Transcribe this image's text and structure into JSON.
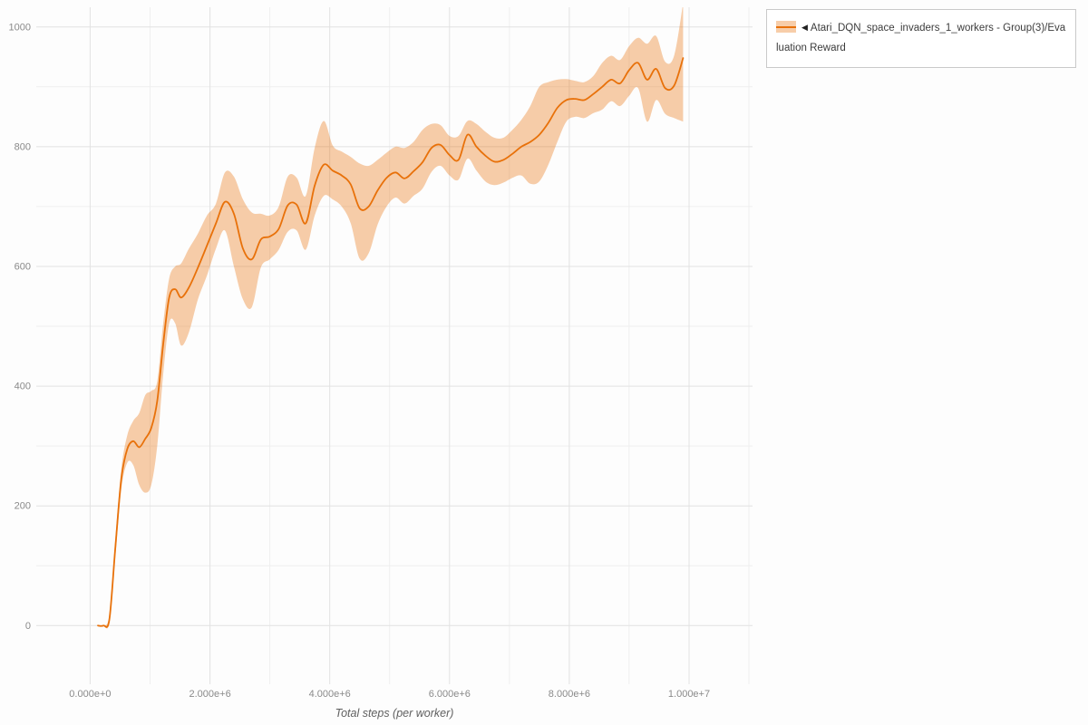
{
  "legend": {
    "collapse_icon": "◀",
    "label": "Atari_DQN_space_invaders_1_workers - Group(3)/Evaluation Reward",
    "border_color": "#c9c9c9"
  },
  "chart_data": {
    "type": "line",
    "title": "",
    "xlabel": "Total steps (per worker)",
    "ylabel": "",
    "xlim": [
      -900000,
      11060000
    ],
    "ylim": [
      -98,
      1033
    ],
    "grid": true,
    "grid_colors": {
      "major": "#e2e2e2",
      "minor": "#efefef"
    },
    "x_grid_major": [
      0,
      2000000,
      4000000,
      6000000,
      8000000,
      10000000
    ],
    "x_grid_minor": [
      1000000,
      3000000,
      5000000,
      7000000,
      9000000,
      11000000
    ],
    "y_grid_major": [
      0,
      200,
      400,
      600,
      800,
      1000
    ],
    "y_grid_minor": [
      100,
      300,
      500,
      700,
      900
    ],
    "x_ticks": [
      {
        "v": 0,
        "label": "0.000e+0"
      },
      {
        "v": 2000000,
        "label": "2.000e+6"
      },
      {
        "v": 4000000,
        "label": "4.000e+6"
      },
      {
        "v": 6000000,
        "label": "6.000e+6"
      },
      {
        "v": 8000000,
        "label": "8.000e+6"
      },
      {
        "v": 10000000,
        "label": "1.000e+7"
      }
    ],
    "y_ticks": [
      {
        "v": 0,
        "label": "0"
      },
      {
        "v": 200,
        "label": "200"
      },
      {
        "v": 400,
        "label": "400"
      },
      {
        "v": 600,
        "label": "600"
      },
      {
        "v": 800,
        "label": "800"
      },
      {
        "v": 1000,
        "label": "1000"
      }
    ],
    "legend_position": "top-right-outside",
    "series": [
      {
        "name": "Atari_DQN_space_invaders_1_workers - Group(3)/Evaluation Reward",
        "color": "#e8710a",
        "band_opacity": 0.35,
        "x": [
          130000,
          220000,
          320000,
          420000,
          520000,
          620000,
          720000,
          820000,
          920000,
          1020000,
          1120000,
          1220000,
          1320000,
          1420000,
          1520000,
          1650000,
          1800000,
          1950000,
          2100000,
          2250000,
          2400000,
          2550000,
          2700000,
          2850000,
          3000000,
          3150000,
          3300000,
          3450000,
          3600000,
          3750000,
          3900000,
          4050000,
          4200000,
          4350000,
          4500000,
          4650000,
          4800000,
          4950000,
          5100000,
          5250000,
          5400000,
          5550000,
          5700000,
          5850000,
          6000000,
          6150000,
          6300000,
          6450000,
          6600000,
          6750000,
          6900000,
          7050000,
          7200000,
          7350000,
          7500000,
          7650000,
          7800000,
          7950000,
          8100000,
          8250000,
          8400000,
          8550000,
          8700000,
          8850000,
          9000000,
          9150000,
          9300000,
          9450000,
          9600000,
          9750000,
          9900000
        ],
        "y": [
          0,
          0,
          10,
          130,
          245,
          295,
          308,
          298,
          312,
          330,
          375,
          470,
          548,
          562,
          548,
          565,
          598,
          635,
          672,
          708,
          688,
          630,
          612,
          645,
          650,
          663,
          702,
          703,
          672,
          735,
          770,
          760,
          752,
          737,
          697,
          700,
          727,
          748,
          757,
          747,
          759,
          774,
          798,
          803,
          786,
          778,
          820,
          800,
          785,
          775,
          778,
          788,
          800,
          808,
          820,
          840,
          865,
          878,
          880,
          878,
          888,
          900,
          912,
          906,
          928,
          940,
          912,
          930,
          898,
          902,
          948
        ],
        "y_lower": [
          0,
          0,
          5,
          115,
          228,
          272,
          268,
          235,
          222,
          235,
          300,
          420,
          505,
          505,
          468,
          490,
          545,
          585,
          630,
          660,
          600,
          545,
          532,
          598,
          612,
          628,
          658,
          660,
          628,
          685,
          718,
          712,
          700,
          672,
          613,
          622,
          670,
          700,
          715,
          705,
          718,
          730,
          758,
          768,
          752,
          745,
          780,
          760,
          742,
          736,
          740,
          748,
          752,
          738,
          742,
          770,
          808,
          842,
          850,
          848,
          856,
          862,
          876,
          868,
          885,
          898,
          842,
          878,
          855,
          848,
          842
        ],
        "y_upper": [
          0,
          0,
          18,
          145,
          262,
          318,
          342,
          355,
          385,
          392,
          408,
          505,
          580,
          600,
          605,
          630,
          655,
          685,
          705,
          757,
          750,
          712,
          690,
          688,
          685,
          700,
          750,
          748,
          718,
          798,
          843,
          802,
          792,
          783,
          772,
          768,
          778,
          790,
          800,
          798,
          808,
          828,
          838,
          836,
          818,
          818,
          843,
          838,
          825,
          815,
          815,
          828,
          845,
          868,
          900,
          908,
          912,
          913,
          910,
          908,
          918,
          940,
          952,
          945,
          968,
          982,
          972,
          985,
          942,
          952,
          1040
        ]
      }
    ]
  }
}
